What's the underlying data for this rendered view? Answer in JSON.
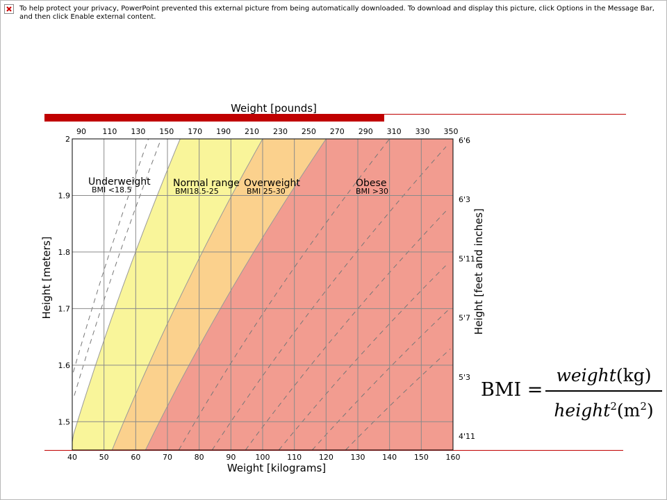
{
  "notice": {
    "icon": "broken-picture-icon",
    "text": "To help protect your privacy, PowerPoint prevented this external picture from being automatically downloaded. To download and display this picture, click Options in the Message Bar, and then click Enable external content."
  },
  "colors": {
    "accent": "#c00000",
    "underweight": "#ffffff",
    "normal": "#f9f59a",
    "overweight": "#fbd18d",
    "obese": "#f29c90"
  },
  "chart_data": {
    "type": "area",
    "title": "",
    "xlabel": "Weight [kilograms]",
    "ylabel": "Height [meters]",
    "x2label": "Weight [pounds]",
    "y2label": "Height [feet and inches]",
    "xlim": [
      40,
      160
    ],
    "ylim": [
      1.45,
      2.0
    ],
    "grid": true,
    "x_ticks": [
      40,
      50,
      60,
      70,
      80,
      90,
      100,
      110,
      120,
      130,
      140,
      150,
      160
    ],
    "y_ticks": [
      1.5,
      1.6,
      1.7,
      1.8,
      1.9,
      2
    ],
    "x2_ticks": [
      "90",
      "110",
      "130",
      "150",
      "170",
      "190",
      "210",
      "230",
      "250",
      "270",
      "290",
      "310",
      "330",
      "350"
    ],
    "y2_ticks": [
      "4'11",
      "5'3",
      "5'7",
      "5'11",
      "6'3",
      "6'6"
    ],
    "zones": [
      {
        "name": "Underweight",
        "range": "BMI <18.5",
        "bmi_min": 0,
        "bmi_max": 18.5,
        "color": "#ffffff"
      },
      {
        "name": "Normal range",
        "range": "BMI18.5-25",
        "bmi_min": 18.5,
        "bmi_max": 25,
        "color": "#f9f59a"
      },
      {
        "name": "Overweight",
        "range": "BMI 25-30",
        "bmi_min": 25,
        "bmi_max": 30,
        "color": "#fbd18d"
      },
      {
        "name": "Obese",
        "range": "BMI >30",
        "bmi_min": 30,
        "bmi_max": 1000,
        "color": "#f29c90"
      }
    ],
    "dashed_bmi_lines": [
      16,
      17,
      35,
      40,
      45,
      50,
      55,
      60
    ]
  },
  "formula": {
    "lhs": "BMI =",
    "num_var": "weight",
    "num_unit": "(kg)",
    "den_var": "height",
    "den_exp": "2",
    "den_unit": "(m",
    "den_unit_exp": "2",
    "den_close": ")"
  }
}
